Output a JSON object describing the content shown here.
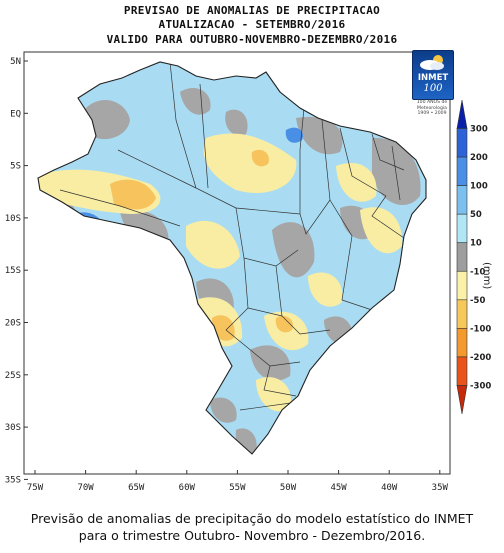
{
  "title": {
    "line1": "PREVISAO DE ANOMALIAS DE PRECIPITACAO",
    "line2": "ATUALIZACAO - SETEMBRO/2016",
    "line3": "VALIDO PARA OUTUBRO-NOVEMBRO-DEZEMBRO/2016"
  },
  "logo": {
    "name": "INMET",
    "number": "100",
    "icon": "cloud-sun-icon",
    "subtitle_lines": [
      "100 ANOS de",
      "Meteorologia",
      "1909 • 2009"
    ]
  },
  "axes": {
    "lon_labels": [
      "75W",
      "70W",
      "65W",
      "60W",
      "55W",
      "50W",
      "45W",
      "40W",
      "35W"
    ],
    "lat_labels": [
      "5N",
      "EQ",
      "5S",
      "10S",
      "15S",
      "20S",
      "25S",
      "30S",
      "35S"
    ]
  },
  "colorbar": {
    "unit": "(mm)",
    "labels": [
      "300",
      "200",
      "100",
      "50",
      "10",
      "-10",
      "-50",
      "-100",
      "-200",
      "-300"
    ],
    "colors": [
      "#0a1fa8",
      "#2c64d8",
      "#4a8fe6",
      "#7cc0f0",
      "#b0e6f6",
      "#9e9e9e",
      "#fbf2a8",
      "#f7c85a",
      "#f29a2e",
      "#e8541a",
      "#c62a0a"
    ]
  },
  "legend_colors": {
    "above_strong": "#4a8fe6",
    "above": "#a9dcf2",
    "near_normal": "#a6a6a6",
    "below": "#f8eda3",
    "below_strong": "#f6c35c"
  },
  "caption": {
    "line1": "Previsão de anomalias de precipitação do modelo estatístico do INMET",
    "line2": "para o trimestre Outubro- Novembro - Dezembro/2016."
  }
}
